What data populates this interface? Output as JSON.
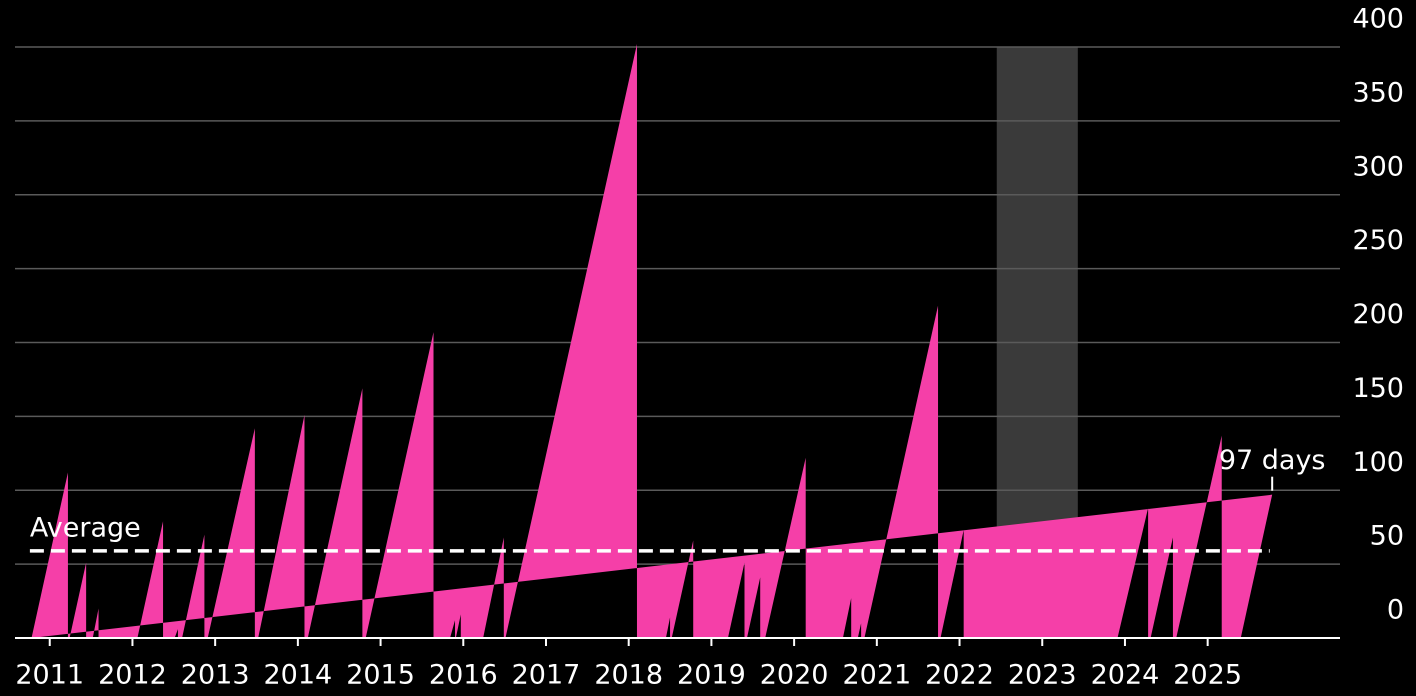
{
  "chart_data": {
    "type": "area",
    "x": [
      2010.78,
      2011.22,
      2011.22,
      2011.24,
      2011.44,
      2011.44,
      2011.52,
      2011.59,
      2011.59,
      2012.06,
      2012.37,
      2012.37,
      2012.51,
      2012.55,
      2012.55,
      2012.6,
      2012.87,
      2012.87,
      2012.91,
      2013.48,
      2013.48,
      2013.52,
      2014.08,
      2014.08,
      2014.12,
      2014.78,
      2014.78,
      2014.82,
      2015.64,
      2015.64,
      2015.84,
      2015.9,
      2015.9,
      2015.91,
      2015.97,
      2015.97,
      2016.24,
      2016.49,
      2016.49,
      2016.51,
      2018.1,
      2018.1,
      2018.45,
      2018.5,
      2018.5,
      2018.52,
      2018.78,
      2018.78,
      2019.2,
      2019.4,
      2019.4,
      2019.43,
      2019.59,
      2019.59,
      2019.65,
      2020.14,
      2020.14,
      2020.59,
      2020.69,
      2020.69,
      2020.77,
      2020.81,
      2020.81,
      2020.85,
      2021.74,
      2021.74,
      2021.77,
      2022.05,
      2022.05,
      2023.91,
      2024.28,
      2024.28,
      2024.31,
      2024.58,
      2024.58,
      2024.62,
      2025.17,
      2025.17,
      2025.4,
      2025.78
    ],
    "values": [
      0,
      112,
      0,
      0,
      51,
      0,
      0,
      20,
      0,
      0,
      79,
      0,
      0,
      6,
      0,
      0,
      70,
      0,
      0,
      142,
      0,
      0,
      151,
      0,
      0,
      169,
      0,
      0,
      207,
      0,
      0,
      12,
      0,
      0,
      16,
      0,
      0,
      68,
      0,
      0,
      402,
      0,
      0,
      14,
      0,
      0,
      66,
      0,
      0,
      51,
      0,
      0,
      41,
      0,
      0,
      122,
      0,
      0,
      27,
      0,
      0,
      10,
      0,
      0,
      225,
      0,
      0,
      73,
      0,
      0,
      88,
      0,
      0,
      68,
      0,
      0,
      137,
      0,
      0,
      97
    ],
    "color": "#f53fa8",
    "xlim": [
      2010.58,
      2026.6
    ],
    "xticks": [
      2011,
      2012,
      2013,
      2014,
      2015,
      2016,
      2017,
      2018,
      2019,
      2020,
      2021,
      2022,
      2023,
      2024,
      2025
    ],
    "ylim": [
      0,
      400
    ],
    "yticks": [
      0,
      50,
      100,
      150,
      200,
      250,
      300,
      350,
      400
    ],
    "grid": true,
    "shaded": [
      2022.45,
      2023.43
    ],
    "average": {
      "label": "Average",
      "value": 59,
      "x": [
        2010.76,
        2025.75
      ]
    },
    "annotation": "97 days"
  }
}
